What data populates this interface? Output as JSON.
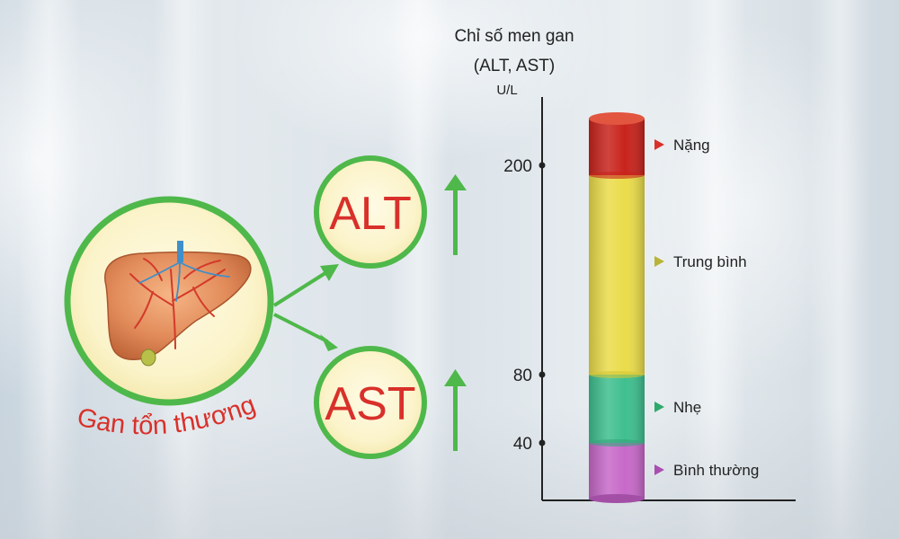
{
  "organ": {
    "label": "Gan tổn thương"
  },
  "enzymes": [
    {
      "name": "ALT",
      "trend": "increase"
    },
    {
      "name": "AST",
      "trend": "increase"
    }
  ],
  "chart": {
    "title_line1": "Chỉ số men gan",
    "title_line2": "(ALT, AST)",
    "unit": "U/L",
    "ticks": [
      "200",
      "80",
      "40"
    ]
  },
  "levels": [
    {
      "label": "Nặng",
      "color": "#c8231c"
    },
    {
      "label": "Trung bình",
      "color": "#eadc4a"
    },
    {
      "label": "Nhẹ",
      "color": "#3fbf8f"
    },
    {
      "label": "Bình thường",
      "color": "#c769c9"
    }
  ],
  "colors": {
    "accent_green": "#4fb84a",
    "label_red": "#d9302a"
  },
  "icons": [
    "liver-icon",
    "up-arrow-icon",
    "triangle-marker-icon"
  ]
}
